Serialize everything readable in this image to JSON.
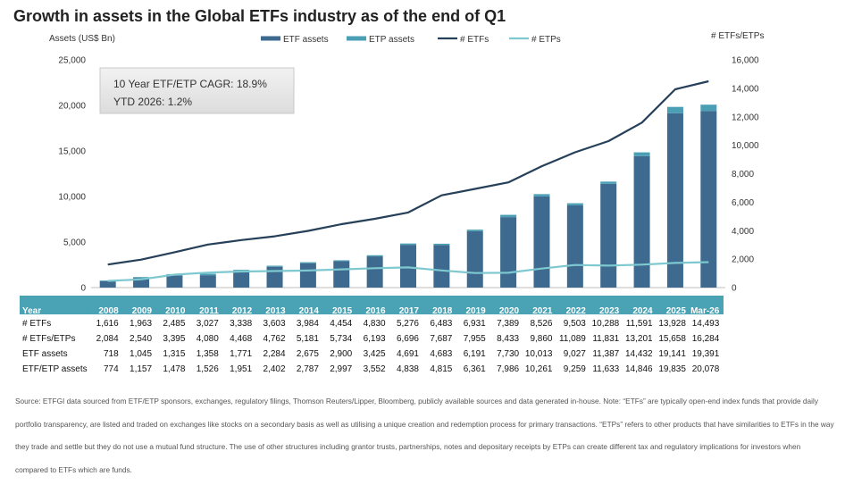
{
  "title": "Growth in assets in the Global ETFs industry as of the end of Q1",
  "source": "Source: ETFGI data sourced from ETF/ETP sponsors, exchanges, regulatory filings, Thomson Reuters/Lipper, Bloomberg, publicly available sources and data generated in-house. Note: “ETFs” are typically open-end index funds that provide daily portfolio transparency, are listed and traded on exchanges like stocks on a secondary basis as well as utilising a unique creation and redemption process for primary transactions. “ETPs” refers to other products that have similarities to ETFs in the way they trade and settle but they do not use a mutual fund structure. The use of other structures including grantor trusts, partnerships, notes and depositary receipts by ETPs can create different tax and regulatory implications for investors when compared to ETFs which are funds.",
  "annotation": {
    "line1": "10 Year ETF/ETP CAGR: 18.9%",
    "line2": "YTD 2026: 1.2%"
  },
  "colors": {
    "etf_assets": "#3d6a8e",
    "etp_assets": "#4a9fb5",
    "etfs_line": "#26405a",
    "etps_line": "#7ec8d0",
    "table_header": "#4aa3b5"
  },
  "chart_data": {
    "type": "bar",
    "title": "Growth in assets in the Global ETFs industry as of the end of Q1",
    "ylabel": "Assets (US$ Bn)",
    "y2label": "# ETFs/ETPs",
    "ylim": [
      0,
      25000
    ],
    "y2lim": [
      0,
      16000
    ],
    "yticks": [
      "0",
      "5,000",
      "10,000",
      "15,000",
      "20,000",
      "25,000"
    ],
    "y2ticks": [
      "0",
      "2,000",
      "4,000",
      "6,000",
      "8,000",
      "10,000",
      "12,000",
      "14,000",
      "16,000"
    ],
    "legend_position": "top",
    "categories": [
      "2008",
      "2009",
      "2010",
      "2011",
      "2012",
      "2013",
      "2014",
      "2015",
      "2016",
      "2017",
      "2018",
      "2019",
      "2020",
      "2021",
      "2022",
      "2023",
      "2024",
      "2025",
      "Mar-26"
    ],
    "series": [
      {
        "name": "ETF assets",
        "type": "bar",
        "axis": "left",
        "values": [
          718,
          1045,
          1315,
          1358,
          1771,
          2284,
          2675,
          2900,
          3425,
          4691,
          4683,
          6191,
          7730,
          10013,
          9027,
          11387,
          14432,
          19141,
          19391
        ]
      },
      {
        "name": "ETP assets",
        "type": "bar",
        "axis": "left",
        "values": [
          56,
          112,
          163,
          168,
          180,
          118,
          112,
          97,
          127,
          147,
          132,
          170,
          256,
          248,
          232,
          246,
          414,
          694,
          687
        ]
      },
      {
        "name": "# ETFs",
        "type": "line",
        "axis": "right",
        "values": [
          1616,
          1963,
          2485,
          3027,
          3338,
          3603,
          3984,
          4454,
          4830,
          5276,
          6483,
          6931,
          7389,
          8526,
          9503,
          10288,
          11591,
          13928,
          14493
        ]
      },
      {
        "name": "# ETPs",
        "type": "line",
        "axis": "right",
        "values": [
          468,
          577,
          910,
          1053,
          1130,
          1159,
          1197,
          1280,
          1363,
          1420,
          1204,
          1024,
          1044,
          1334,
          1586,
          1543,
          1610,
          1730,
          1791
        ]
      }
    ],
    "table": {
      "header": "Year",
      "rows": [
        {
          "label": "# ETFs",
          "values": [
            "1,616",
            "1,963",
            "2,485",
            "3,027",
            "3,338",
            "3,603",
            "3,984",
            "4,454",
            "4,830",
            "5,276",
            "6,483",
            "6,931",
            "7,389",
            "8,526",
            "9,503",
            "10,288",
            "11,591",
            "13,928",
            "14,493"
          ]
        },
        {
          "label": "# ETFs/ETPs",
          "values": [
            "2,084",
            "2,540",
            "3,395",
            "4,080",
            "4,468",
            "4,762",
            "5,181",
            "5,734",
            "6,193",
            "6,696",
            "7,687",
            "7,955",
            "8,433",
            "9,860",
            "11,089",
            "11,831",
            "13,201",
            "15,658",
            "16,284"
          ]
        },
        {
          "label": "ETF assets",
          "values": [
            "718",
            "1,045",
            "1,315",
            "1,358",
            "1,771",
            "2,284",
            "2,675",
            "2,900",
            "3,425",
            "4,691",
            "4,683",
            "6,191",
            "7,730",
            "10,013",
            "9,027",
            "11,387",
            "14,432",
            "19,141",
            "19,391"
          ]
        },
        {
          "label": "ETF/ETP assets",
          "values": [
            "774",
            "1,157",
            "1,478",
            "1,526",
            "1,951",
            "2,402",
            "2,787",
            "2,997",
            "3,552",
            "4,838",
            "4,815",
            "6,361",
            "7,986",
            "10,261",
            "9,259",
            "11,633",
            "14,846",
            "19,835",
            "20,078"
          ]
        }
      ]
    }
  }
}
